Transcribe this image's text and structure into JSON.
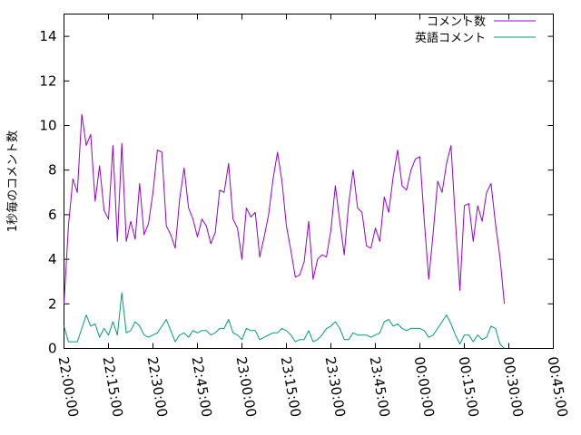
{
  "chart_data": {
    "type": "line",
    "title": "",
    "xlabel": "",
    "ylabel": "1秒毎のコメント数",
    "xlim": [
      "22:00:00",
      "00:45:00"
    ],
    "ylim": [
      0,
      15
    ],
    "xtick_labels": [
      "22:00:00",
      "22:15:00",
      "22:30:00",
      "22:45:00",
      "23:00:00",
      "23:15:00",
      "23:30:00",
      "23:45:00",
      "00:00:00",
      "00:15:00",
      "00:30:00",
      "00:45:00"
    ],
    "yticks": [
      0,
      2,
      4,
      6,
      8,
      10,
      12,
      14
    ],
    "ytick_labels": [
      "0",
      "2",
      "4",
      "6",
      "8",
      "10",
      "12",
      "14"
    ],
    "grid": false,
    "legend_position": "top-right",
    "x_start": "22:00:00",
    "x_step_minutes": 1.5,
    "series": [
      {
        "name": "コメント数",
        "color": "#9400d3",
        "values": [
          2.0,
          5.5,
          7.6,
          7.0,
          10.5,
          9.1,
          9.6,
          6.6,
          8.2,
          6.2,
          5.8,
          9.1,
          4.8,
          9.2,
          4.8,
          5.7,
          4.9,
          7.4,
          5.1,
          5.6,
          7.0,
          8.9,
          8.8,
          5.5,
          5.1,
          4.5,
          6.7,
          8.1,
          6.3,
          5.8,
          5.0,
          5.8,
          5.5,
          4.7,
          5.2,
          7.1,
          7.0,
          8.3,
          5.8,
          5.4,
          4.0,
          6.3,
          5.9,
          6.1,
          4.1,
          5.0,
          6.0,
          7.6,
          8.8,
          7.5,
          5.5,
          4.4,
          3.2,
          3.3,
          3.9,
          5.7,
          3.1,
          4.0,
          4.2,
          4.1,
          5.3,
          7.3,
          5.7,
          4.2,
          6.5,
          8.0,
          6.3,
          6.1,
          4.6,
          4.5,
          5.4,
          4.8,
          6.8,
          6.1,
          7.7,
          8.9,
          7.3,
          7.1,
          8.0,
          8.5,
          8.6,
          5.7,
          3.1,
          5.2,
          7.5,
          7.0,
          8.3,
          9.1,
          5.7,
          2.6,
          6.4,
          6.5,
          4.8,
          6.4,
          5.7,
          7.0,
          7.4,
          5.6,
          4.1,
          2.0
        ]
      },
      {
        "name": "英語コメント",
        "color": "#009e73",
        "values": [
          1.0,
          0.3,
          0.3,
          0.3,
          0.9,
          1.5,
          1.0,
          1.1,
          0.5,
          0.9,
          0.6,
          1.2,
          0.6,
          2.5,
          0.7,
          0.8,
          1.2,
          1.0,
          0.6,
          0.5,
          0.6,
          0.7,
          1.0,
          1.3,
          0.8,
          0.3,
          0.6,
          0.7,
          0.5,
          0.8,
          0.7,
          0.8,
          0.8,
          0.6,
          0.7,
          0.9,
          0.9,
          1.3,
          0.7,
          0.6,
          0.4,
          0.9,
          0.8,
          0.8,
          0.4,
          0.5,
          0.6,
          0.7,
          0.7,
          0.9,
          0.8,
          0.6,
          0.3,
          0.4,
          0.4,
          0.8,
          0.3,
          0.4,
          0.6,
          0.9,
          1.0,
          1.2,
          0.9,
          0.4,
          0.4,
          0.7,
          0.6,
          0.6,
          0.6,
          0.5,
          0.6,
          0.7,
          1.2,
          1.3,
          1.0,
          1.1,
          0.9,
          0.8,
          0.9,
          0.9,
          0.9,
          0.8,
          0.5,
          0.6,
          0.9,
          1.2,
          1.5,
          1.1,
          0.6,
          0.2,
          0.6,
          0.6,
          0.3,
          0.6,
          0.4,
          0.5,
          1.0,
          0.9,
          0.2,
          0.0
        ]
      }
    ]
  }
}
